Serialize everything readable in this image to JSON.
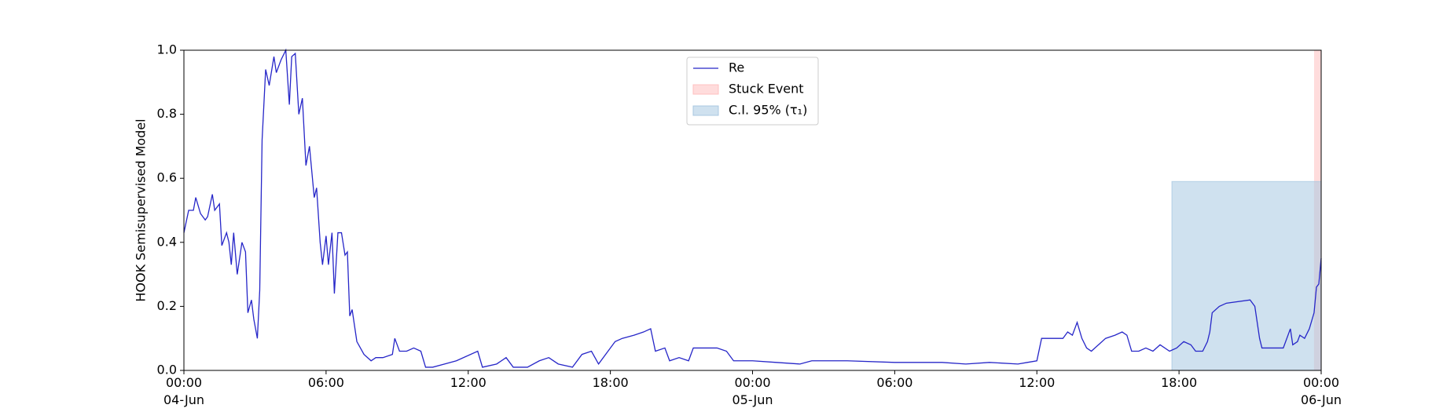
{
  "chart_data": {
    "type": "line",
    "ylabel": "HOOK Semisupervised Model",
    "xlim": [
      "1990-06-04 00:00",
      "1990-06-06 00:00"
    ],
    "xticks": [
      {
        "value": "1990-06-04 00:00",
        "label": "00:00\n04-Jun\n1990"
      },
      {
        "value": "1990-06-04 06:00",
        "label": "06:00"
      },
      {
        "value": "1990-06-04 12:00",
        "label": "12:00"
      },
      {
        "value": "1990-06-04 18:00",
        "label": "18:00"
      },
      {
        "value": "1990-06-05 00:00",
        "label": "00:00\n05-Jun"
      },
      {
        "value": "1990-06-05 06:00",
        "label": "06:00"
      },
      {
        "value": "1990-06-05 12:00",
        "label": "12:00"
      },
      {
        "value": "1990-06-05 18:00",
        "label": "18:00"
      },
      {
        "value": "1990-06-06 00:00",
        "label": "00:00\n06-Jun"
      }
    ],
    "ylim": [
      0,
      1
    ],
    "yticks": [
      {
        "value": 0,
        "label": "0.0"
      },
      0.2,
      0.4,
      0.6,
      0.8,
      {
        "value": 1,
        "label": "1.0"
      }
    ],
    "legend": "upper center",
    "regions": [
      {
        "name": "Stuck Event",
        "color": "#ffc0c0",
        "x": [
          "1990-06-05 23:42",
          "1990-06-06 00:00"
        ]
      },
      {
        "name": "C.I. 95% (τ₁)",
        "color": "#a8c8e2",
        "x": [
          "1990-06-05 17:42",
          "1990-06-06 00:00"
        ],
        "y": [
          0,
          0.59
        ]
      }
    ],
    "x": [
      "1990-06-04 00:00",
      "1990-06-04 00:12",
      "1990-06-04 00:24",
      "1990-06-04 00:30",
      "1990-06-04 00:42",
      "1990-06-04 00:54",
      "1990-06-04 01:00",
      "1990-06-04 01:12",
      "1990-06-04 01:18",
      "1990-06-04 01:30",
      "1990-06-04 01:36",
      "1990-06-04 01:48",
      "1990-06-04 01:54",
      "1990-06-04 02:00",
      "1990-06-04 02:06",
      "1990-06-04 02:15",
      "1990-06-04 02:27",
      "1990-06-04 02:36",
      "1990-06-04 02:42",
      "1990-06-04 02:51",
      "1990-06-04 02:57",
      "1990-06-04 03:06",
      "1990-06-04 03:12",
      "1990-06-04 03:18",
      "1990-06-04 03:27",
      "1990-06-04 03:36",
      "1990-06-04 03:48",
      "1990-06-04 03:54",
      "1990-06-04 04:06",
      "1990-06-04 04:18",
      "1990-06-04 04:27",
      "1990-06-04 04:33",
      "1990-06-04 04:42",
      "1990-06-04 04:51",
      "1990-06-04 05:00",
      "1990-06-04 05:09",
      "1990-06-04 05:18",
      "1990-06-04 05:30",
      "1990-06-04 05:36",
      "1990-06-04 05:45",
      "1990-06-04 05:51",
      "1990-06-04 06:00",
      "1990-06-04 06:06",
      "1990-06-04 06:15",
      "1990-06-04 06:21",
      "1990-06-04 06:30",
      "1990-06-04 06:39",
      "1990-06-04 06:48",
      "1990-06-04 06:54",
      "1990-06-04 07:00",
      "1990-06-04 07:06",
      "1990-06-04 07:18",
      "1990-06-04 07:36",
      "1990-06-04 07:54",
      "1990-06-04 08:06",
      "1990-06-04 08:24",
      "1990-06-04 08:48",
      "1990-06-04 08:54",
      "1990-06-04 09:06",
      "1990-06-04 09:24",
      "1990-06-04 09:42",
      "1990-06-04 10:00",
      "1990-06-04 10:12",
      "1990-06-04 10:30",
      "1990-06-04 11:00",
      "1990-06-04 11:30",
      "1990-06-04 12:24",
      "1990-06-04 12:36",
      "1990-06-04 13:12",
      "1990-06-04 13:36",
      "1990-06-04 13:54",
      "1990-06-04 14:30",
      "1990-06-04 15:00",
      "1990-06-04 15:24",
      "1990-06-04 15:48",
      "1990-06-04 16:24",
      "1990-06-04 16:48",
      "1990-06-04 17:12",
      "1990-06-04 17:30",
      "1990-06-04 17:54",
      "1990-06-04 18:12",
      "1990-06-04 18:30",
      "1990-06-04 19:00",
      "1990-06-04 19:24",
      "1990-06-04 19:42",
      "1990-06-04 19:54",
      "1990-06-04 20:18",
      "1990-06-04 20:30",
      "1990-06-04 20:54",
      "1990-06-04 21:18",
      "1990-06-04 21:30",
      "1990-06-04 22:00",
      "1990-06-04 22:30",
      "1990-06-04 22:54",
      "1990-06-04 23:12",
      "1990-06-05 00:00",
      "1990-06-05 01:00",
      "1990-06-05 02:00",
      "1990-06-05 02:30",
      "1990-06-05 04:00",
      "1990-06-05 06:00",
      "1990-06-05 08:00",
      "1990-06-05 09:00",
      "1990-06-05 10:00",
      "1990-06-05 11:12",
      "1990-06-05 11:36",
      "1990-06-05 12:00",
      "1990-06-05 12:12",
      "1990-06-05 12:36",
      "1990-06-05 13:06",
      "1990-06-05 13:18",
      "1990-06-05 13:30",
      "1990-06-05 13:42",
      "1990-06-05 13:54",
      "1990-06-05 14:06",
      "1990-06-05 14:18",
      "1990-06-05 14:36",
      "1990-06-05 14:54",
      "1990-06-05 15:18",
      "1990-06-05 15:36",
      "1990-06-05 15:48",
      "1990-06-05 16:00",
      "1990-06-05 16:18",
      "1990-06-05 16:36",
      "1990-06-05 16:54",
      "1990-06-05 17:12",
      "1990-06-05 17:36",
      "1990-06-05 17:54",
      "1990-06-05 18:12",
      "1990-06-05 18:30",
      "1990-06-05 18:42",
      "1990-06-05 19:00",
      "1990-06-05 19:12",
      "1990-06-05 19:18",
      "1990-06-05 19:24",
      "1990-06-05 19:42",
      "1990-06-05 20:00",
      "1990-06-05 21:00",
      "1990-06-05 21:12",
      "1990-06-05 21:24",
      "1990-06-05 21:30",
      "1990-06-05 22:24",
      "1990-06-05 22:36",
      "1990-06-05 22:42",
      "1990-06-05 22:48",
      "1990-06-05 23:00",
      "1990-06-05 23:06",
      "1990-06-05 23:18",
      "1990-06-05 23:30",
      "1990-06-05 23:42",
      "1990-06-05 23:48",
      "1990-06-05 23:54",
      "1990-06-06 00:00"
    ],
    "series": [
      {
        "name": "Re",
        "color": "#2626c8",
        "values": [
          0.43,
          0.5,
          0.5,
          0.54,
          0.49,
          0.47,
          0.48,
          0.55,
          0.5,
          0.52,
          0.39,
          0.43,
          0.4,
          0.33,
          0.43,
          0.3,
          0.4,
          0.37,
          0.18,
          0.22,
          0.16,
          0.1,
          0.25,
          0.72,
          0.94,
          0.89,
          0.98,
          0.93,
          0.97,
          1.0,
          0.83,
          0.98,
          0.99,
          0.8,
          0.85,
          0.64,
          0.7,
          0.54,
          0.57,
          0.4,
          0.33,
          0.42,
          0.33,
          0.43,
          0.24,
          0.43,
          0.43,
          0.36,
          0.37,
          0.17,
          0.19,
          0.09,
          0.05,
          0.03,
          0.04,
          0.04,
          0.05,
          0.1,
          0.06,
          0.06,
          0.07,
          0.06,
          0.01,
          0.01,
          0.02,
          0.03,
          0.06,
          0.01,
          0.02,
          0.04,
          0.01,
          0.01,
          0.03,
          0.04,
          0.02,
          0.01,
          0.05,
          0.06,
          0.02,
          0.06,
          0.09,
          0.1,
          0.11,
          0.12,
          0.13,
          0.06,
          0.07,
          0.03,
          0.04,
          0.03,
          0.07,
          0.07,
          0.07,
          0.06,
          0.03,
          0.03,
          0.025,
          0.02,
          0.03,
          0.03,
          0.025,
          0.025,
          0.02,
          0.025,
          0.02,
          0.025,
          0.03,
          0.1,
          0.1,
          0.1,
          0.12,
          0.11,
          0.15,
          0.1,
          0.07,
          0.06,
          0.08,
          0.1,
          0.11,
          0.12,
          0.11,
          0.06,
          0.06,
          0.07,
          0.06,
          0.08,
          0.06,
          0.07,
          0.09,
          0.08,
          0.06,
          0.06,
          0.09,
          0.12,
          0.18,
          0.2,
          0.21,
          0.22,
          0.2,
          0.1,
          0.07,
          0.07,
          0.11,
          0.13,
          0.08,
          0.09,
          0.11,
          0.1,
          0.13,
          0.18,
          0.26,
          0.27,
          0.35
        ]
      }
    ]
  }
}
